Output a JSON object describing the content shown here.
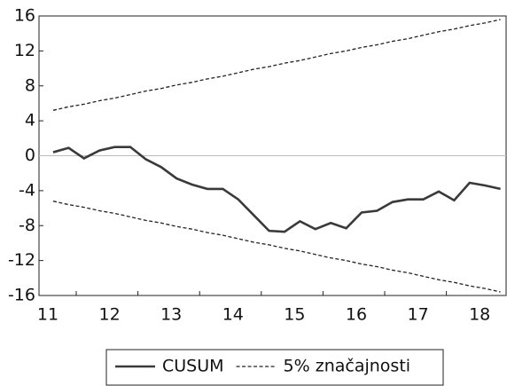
{
  "chart_data": {
    "type": "line",
    "categories": [
      "11",
      null,
      null,
      null,
      "12",
      null,
      null,
      null,
      "13",
      null,
      null,
      null,
      "14",
      null,
      null,
      null,
      "15",
      null,
      null,
      null,
      "16",
      null,
      null,
      null,
      "17",
      null,
      null,
      null,
      "18",
      null
    ],
    "series": [
      {
        "name": "CUSUM",
        "color": "#3a3a3a",
        "style": "solid",
        "values": [
          0.4,
          0.9,
          -0.3,
          0.6,
          1.0,
          1.0,
          -0.4,
          -1.3,
          -2.6,
          -3.3,
          -3.8,
          -3.8,
          -5.0,
          -6.8,
          -8.6,
          -8.7,
          -7.5,
          -8.4,
          -7.7,
          -8.3,
          -6.5,
          -6.3,
          -5.3,
          -5.0,
          -5.0,
          -4.1,
          -5.1,
          -3.1,
          -3.4,
          -3.8
        ]
      },
      {
        "name": "5% značajnosti",
        "color": "#222222",
        "style": "dashed",
        "values": [
          5.2,
          5.6,
          5.9,
          6.3,
          6.6,
          7.0,
          7.4,
          7.7,
          8.1,
          8.4,
          8.8,
          9.1,
          9.5,
          9.9,
          10.2,
          10.6,
          10.9,
          11.3,
          11.7,
          12.0,
          12.4,
          12.7,
          13.1,
          13.4,
          13.8,
          14.2,
          14.5,
          14.9,
          15.2,
          15.6
        ]
      },
      {
        "color": "#222222",
        "style": "dashed",
        "values": [
          -5.2,
          -5.6,
          -5.9,
          -6.3,
          -6.6,
          -7.0,
          -7.4,
          -7.7,
          -8.1,
          -8.4,
          -8.8,
          -9.1,
          -9.5,
          -9.9,
          -10.2,
          -10.6,
          -10.9,
          -11.3,
          -11.7,
          -12.0,
          -12.4,
          -12.7,
          -13.1,
          -13.4,
          -13.8,
          -14.2,
          -14.5,
          -14.9,
          -15.2,
          -15.6
        ]
      }
    ],
    "ylim": [
      -16,
      16
    ],
    "yticks": [
      -16,
      -12,
      -8,
      -4,
      0,
      4,
      8,
      12,
      16
    ],
    "zero_line": true
  }
}
